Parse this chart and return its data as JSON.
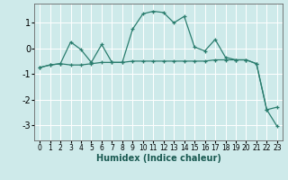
{
  "xlabel": "Humidex (Indice chaleur)",
  "x": [
    0,
    1,
    2,
    3,
    4,
    5,
    6,
    7,
    8,
    9,
    10,
    11,
    12,
    13,
    14,
    15,
    16,
    17,
    18,
    19,
    20,
    21,
    22,
    23
  ],
  "curve1": [
    -0.75,
    -0.65,
    -0.6,
    0.25,
    -0.05,
    -0.55,
    0.15,
    -0.55,
    -0.55,
    0.75,
    1.35,
    1.45,
    1.4,
    1.0,
    1.25,
    0.05,
    -0.1,
    0.35,
    -0.35,
    -0.45,
    -0.45,
    -0.6,
    -2.4,
    -2.3
  ],
  "curve2": [
    -0.75,
    -0.65,
    -0.6,
    -0.65,
    -0.65,
    -0.6,
    -0.55,
    -0.55,
    -0.55,
    -0.5,
    -0.5,
    -0.5,
    -0.5,
    -0.5,
    -0.5,
    -0.5,
    -0.5,
    -0.45,
    -0.45,
    -0.45,
    -0.45,
    -0.6,
    -2.4,
    -3.05
  ],
  "line_color": "#2a7d6e",
  "bg_color": "#ceeaea",
  "grid_color": "#ffffff",
  "ylim": [
    -3.6,
    1.75
  ],
  "yticks": [
    -3,
    -2,
    -1,
    0,
    1
  ]
}
